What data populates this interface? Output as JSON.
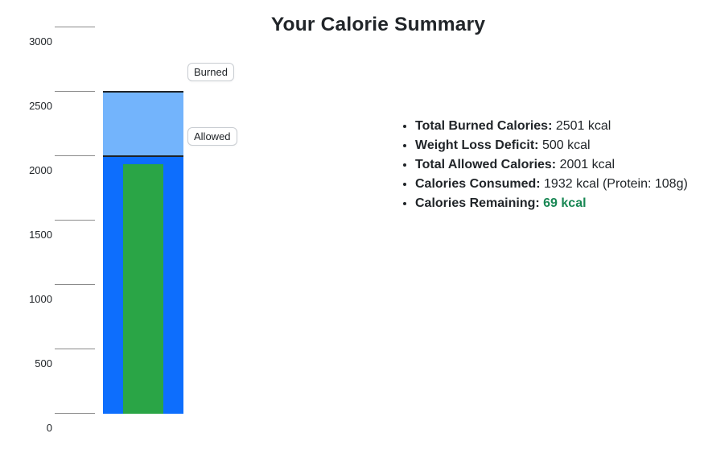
{
  "page": {
    "title": "Your Calorie Summary"
  },
  "summary": {
    "items": [
      {
        "label": "Total Burned Calories:",
        "value": "2501 kcal",
        "highlight": false
      },
      {
        "label": "Weight Loss Deficit:",
        "value": "500 kcal",
        "highlight": false
      },
      {
        "label": "Total Allowed Calories:",
        "value": "2001 kcal",
        "highlight": false
      },
      {
        "label": "Calories Consumed:",
        "value": "1932 kcal (Protein: 108g)",
        "highlight": false
      },
      {
        "label": "Calories Remaining:",
        "value": "69 kcal",
        "highlight": true
      }
    ]
  },
  "chart_data": {
    "type": "bar",
    "title": "Your Calorie Summary",
    "xlabel": "",
    "ylabel": "",
    "ylim": [
      0,
      3000
    ],
    "yticks": [
      0,
      500,
      1000,
      1500,
      2000,
      2500,
      3000
    ],
    "grid": false,
    "legend_position": "none",
    "series": [
      {
        "name": "Burned",
        "value": 2501,
        "color": "#73b4fc"
      },
      {
        "name": "Allowed",
        "value": 2001,
        "color": "#0d6efd"
      },
      {
        "name": "Consumed",
        "value": 1932,
        "color": "#2aa546"
      }
    ],
    "annotations": [
      {
        "text": "Burned",
        "attach_to": "Burned"
      },
      {
        "text": "Allowed",
        "attach_to": "Allowed"
      }
    ]
  },
  "colors": {
    "text": "#212529",
    "highlight_green": "#198754",
    "tick_line": "#8a8a8a",
    "bar_top_border": "#1f2327",
    "annotation_border": "#c9cdd2"
  }
}
